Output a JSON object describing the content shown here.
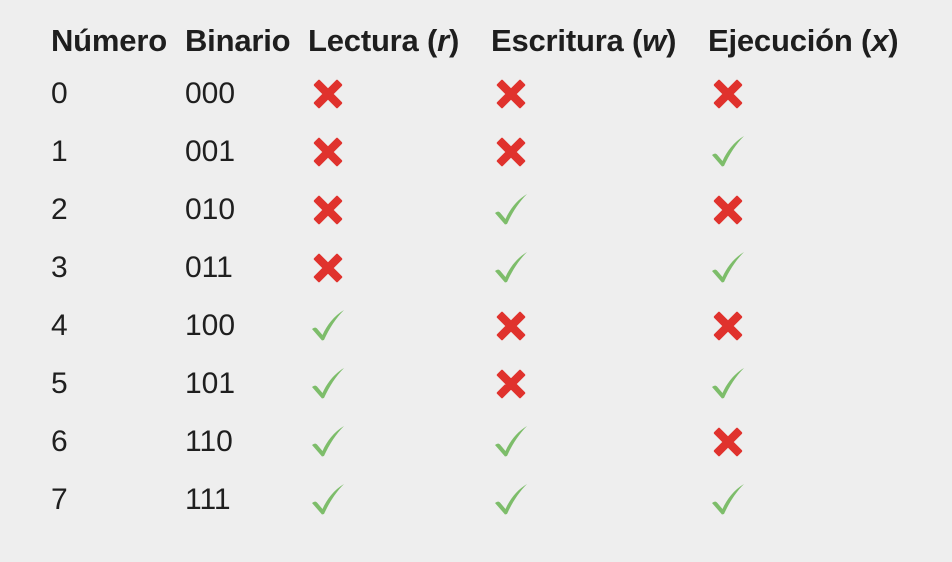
{
  "headers": {
    "numero": "Número",
    "binario": "Binario",
    "lectura": "Lectura",
    "lectura_letter": "r",
    "escritura": "Escritura",
    "escritura_letter": "w",
    "ejecucion": "Ejecución",
    "ejecucion_letter": "x"
  },
  "colors": {
    "cross": "#e0322d",
    "check": "#7dbd6a"
  },
  "rows": [
    {
      "numero": "0",
      "binario": "000",
      "r": "cross-icon",
      "w": "cross-icon",
      "x": "cross-icon"
    },
    {
      "numero": "1",
      "binario": "001",
      "r": "cross-icon",
      "w": "cross-icon",
      "x": "check-icon"
    },
    {
      "numero": "2",
      "binario": "010",
      "r": "cross-icon",
      "w": "check-icon",
      "x": "cross-icon"
    },
    {
      "numero": "3",
      "binario": "011",
      "r": "cross-icon",
      "w": "check-icon",
      "x": "check-icon"
    },
    {
      "numero": "4",
      "binario": "100",
      "r": "check-icon",
      "w": "cross-icon",
      "x": "cross-icon"
    },
    {
      "numero": "5",
      "binario": "101",
      "r": "check-icon",
      "w": "cross-icon",
      "x": "check-icon"
    },
    {
      "numero": "6",
      "binario": "110",
      "r": "check-icon",
      "w": "check-icon",
      "x": "cross-icon"
    },
    {
      "numero": "7",
      "binario": "111",
      "r": "check-icon",
      "w": "check-icon",
      "x": "check-icon"
    }
  ]
}
